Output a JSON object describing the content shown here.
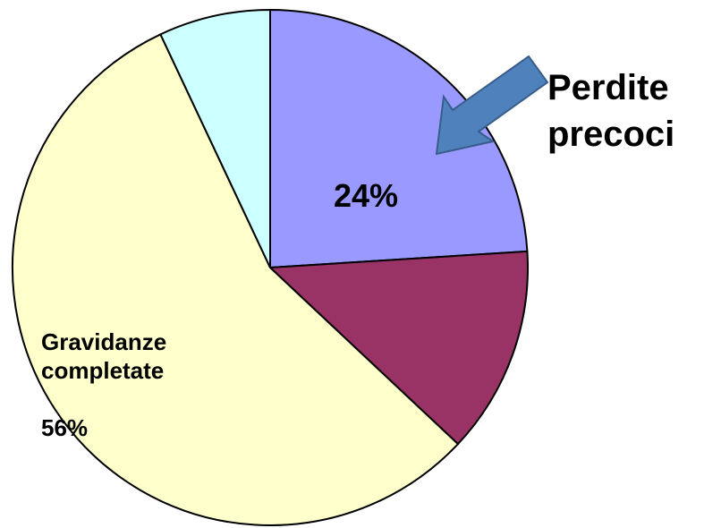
{
  "chart_data": {
    "type": "pie",
    "categories": [
      null,
      null,
      "Gravidanze completate",
      null
    ],
    "values": [
      24,
      13,
      56,
      7
    ],
    "value_labels": [
      "24%",
      null,
      "56%",
      null
    ],
    "colors": [
      "#9999ff",
      "#993366",
      "#ffffcc",
      "#ccffff"
    ],
    "annotation": "Perdite precoci"
  }
}
